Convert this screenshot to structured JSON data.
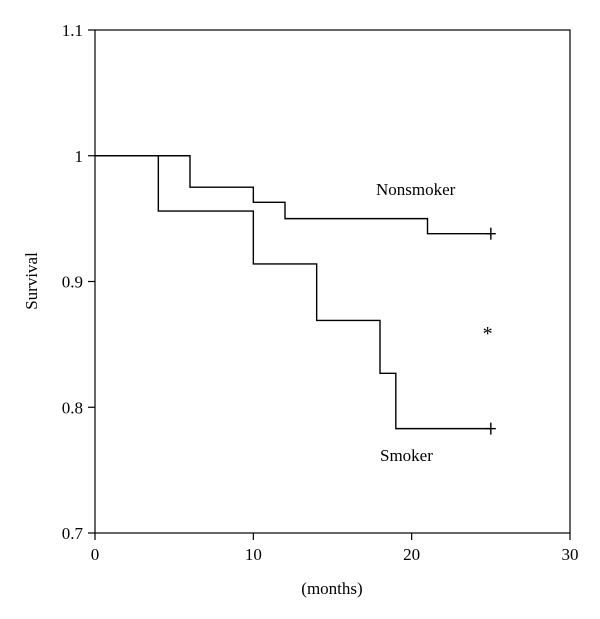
{
  "chart_data": {
    "type": "line",
    "subtype": "step",
    "title": "",
    "xlabel": "(months)",
    "ylabel": "Survival",
    "xlim": [
      0,
      30
    ],
    "ylim": [
      0.7,
      1.1
    ],
    "x_ticks": [
      0,
      10,
      20,
      30
    ],
    "x_tick_labels": [
      "0",
      "10",
      "20",
      "30"
    ],
    "y_ticks": [
      0.7,
      0.8,
      0.9,
      1.0,
      1.1
    ],
    "y_tick_labels": [
      "0.7",
      "0.8",
      "0.9",
      "1",
      "1.1"
    ],
    "grid": false,
    "legend": "none",
    "line_color": "#000000",
    "series": [
      {
        "name": "Nonsmoker",
        "x": [
          0,
          6,
          10,
          12,
          21,
          25
        ],
        "y": [
          1.0,
          0.975,
          0.963,
          0.95,
          0.938,
          0.938
        ],
        "censored_at": 25
      },
      {
        "name": "Smoker",
        "x": [
          0,
          4,
          10,
          14,
          18,
          19,
          25
        ],
        "y": [
          1.0,
          0.956,
          0.914,
          0.869,
          0.827,
          0.783,
          0.783
        ],
        "censored_at": 25
      }
    ],
    "annotations": [
      {
        "text": "*",
        "x": 24.8,
        "y": 0.86
      }
    ]
  }
}
